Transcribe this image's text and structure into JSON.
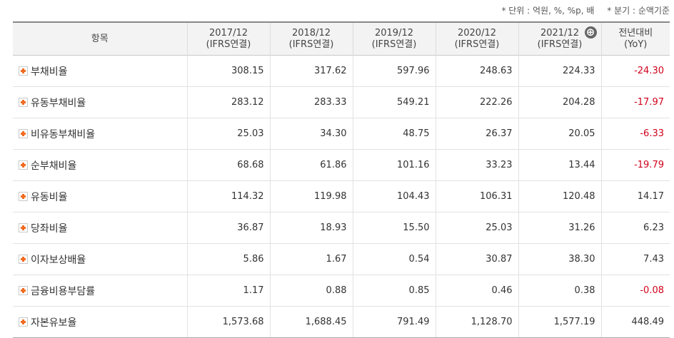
{
  "note": {
    "unit": "* 단위 : 억원, %, %p, 배",
    "basis": "* 분기 : 순액기준"
  },
  "header": {
    "item": "항목",
    "periods": [
      {
        "year": "2017/12",
        "type": "(IFRS연결)"
      },
      {
        "year": "2018/12",
        "type": "(IFRS연결)"
      },
      {
        "year": "2019/12",
        "type": "(IFRS연결)"
      },
      {
        "year": "2020/12",
        "type": "(IFRS연결)"
      },
      {
        "year": "2021/12",
        "type": "(IFRS연결)"
      }
    ],
    "yoy": {
      "line1": "전년대비",
      "line2": "(YoY)"
    },
    "add_icon": "⊕"
  },
  "rows": [
    {
      "label": "부채비율",
      "values": [
        "308.15",
        "317.62",
        "597.96",
        "248.63",
        "224.33"
      ],
      "yoy": "-24.30"
    },
    {
      "label": "유동부채비율",
      "values": [
        "283.12",
        "283.33",
        "549.21",
        "222.26",
        "204.28"
      ],
      "yoy": "-17.97"
    },
    {
      "label": "비유동부채비율",
      "values": [
        "25.03",
        "34.30",
        "48.75",
        "26.37",
        "20.05"
      ],
      "yoy": "-6.33"
    },
    {
      "label": "순부채비율",
      "values": [
        "68.68",
        "61.86",
        "101.16",
        "33.23",
        "13.44"
      ],
      "yoy": "-19.79"
    },
    {
      "label": "유동비율",
      "values": [
        "114.32",
        "119.98",
        "104.43",
        "106.31",
        "120.48"
      ],
      "yoy": "14.17"
    },
    {
      "label": "당좌비율",
      "values": [
        "36.87",
        "18.93",
        "15.50",
        "25.03",
        "31.26"
      ],
      "yoy": "6.23"
    },
    {
      "label": "이자보상배율",
      "values": [
        "5.86",
        "1.67",
        "0.54",
        "30.87",
        "38.30"
      ],
      "yoy": "7.43"
    },
    {
      "label": "금융비용부담률",
      "values": [
        "1.17",
        "0.88",
        "0.85",
        "0.46",
        "0.38"
      ],
      "yoy": "-0.08"
    },
    {
      "label": "자본유보율",
      "values": [
        "1,573.68",
        "1,688.45",
        "791.49",
        "1,128.70",
        "1,577.19"
      ],
      "yoy": "448.49"
    }
  ]
}
